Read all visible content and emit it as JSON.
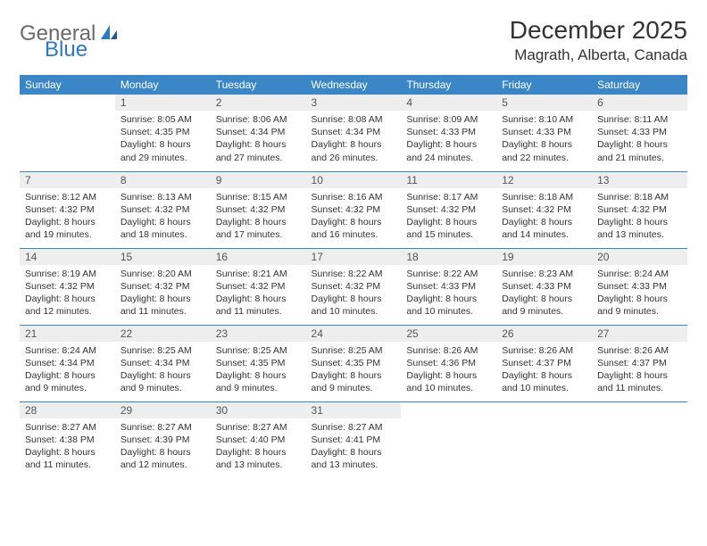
{
  "logo": {
    "part1": "General",
    "part2": "Blue"
  },
  "header": {
    "title": "December 2025",
    "location": "Magrath, Alberta, Canada"
  },
  "colors": {
    "header_bg": "#3b86c6",
    "header_fg": "#ffffff",
    "daynum_bg": "#eeeeee",
    "rule": "#3b86c6",
    "logo_gray": "#6a6a6a",
    "logo_blue": "#2f7abf"
  },
  "daynames": [
    "Sunday",
    "Monday",
    "Tuesday",
    "Wednesday",
    "Thursday",
    "Friday",
    "Saturday"
  ],
  "weeks": [
    [
      null,
      {
        "n": "1",
        "sr": "8:05 AM",
        "ss": "4:35 PM",
        "dl": "8 hours and 29 minutes."
      },
      {
        "n": "2",
        "sr": "8:06 AM",
        "ss": "4:34 PM",
        "dl": "8 hours and 27 minutes."
      },
      {
        "n": "3",
        "sr": "8:08 AM",
        "ss": "4:34 PM",
        "dl": "8 hours and 26 minutes."
      },
      {
        "n": "4",
        "sr": "8:09 AM",
        "ss": "4:33 PM",
        "dl": "8 hours and 24 minutes."
      },
      {
        "n": "5",
        "sr": "8:10 AM",
        "ss": "4:33 PM",
        "dl": "8 hours and 22 minutes."
      },
      {
        "n": "6",
        "sr": "8:11 AM",
        "ss": "4:33 PM",
        "dl": "8 hours and 21 minutes."
      }
    ],
    [
      {
        "n": "7",
        "sr": "8:12 AM",
        "ss": "4:32 PM",
        "dl": "8 hours and 19 minutes."
      },
      {
        "n": "8",
        "sr": "8:13 AM",
        "ss": "4:32 PM",
        "dl": "8 hours and 18 minutes."
      },
      {
        "n": "9",
        "sr": "8:15 AM",
        "ss": "4:32 PM",
        "dl": "8 hours and 17 minutes."
      },
      {
        "n": "10",
        "sr": "8:16 AM",
        "ss": "4:32 PM",
        "dl": "8 hours and 16 minutes."
      },
      {
        "n": "11",
        "sr": "8:17 AM",
        "ss": "4:32 PM",
        "dl": "8 hours and 15 minutes."
      },
      {
        "n": "12",
        "sr": "8:18 AM",
        "ss": "4:32 PM",
        "dl": "8 hours and 14 minutes."
      },
      {
        "n": "13",
        "sr": "8:18 AM",
        "ss": "4:32 PM",
        "dl": "8 hours and 13 minutes."
      }
    ],
    [
      {
        "n": "14",
        "sr": "8:19 AM",
        "ss": "4:32 PM",
        "dl": "8 hours and 12 minutes."
      },
      {
        "n": "15",
        "sr": "8:20 AM",
        "ss": "4:32 PM",
        "dl": "8 hours and 11 minutes."
      },
      {
        "n": "16",
        "sr": "8:21 AM",
        "ss": "4:32 PM",
        "dl": "8 hours and 11 minutes."
      },
      {
        "n": "17",
        "sr": "8:22 AM",
        "ss": "4:32 PM",
        "dl": "8 hours and 10 minutes."
      },
      {
        "n": "18",
        "sr": "8:22 AM",
        "ss": "4:33 PM",
        "dl": "8 hours and 10 minutes."
      },
      {
        "n": "19",
        "sr": "8:23 AM",
        "ss": "4:33 PM",
        "dl": "8 hours and 9 minutes."
      },
      {
        "n": "20",
        "sr": "8:24 AM",
        "ss": "4:33 PM",
        "dl": "8 hours and 9 minutes."
      }
    ],
    [
      {
        "n": "21",
        "sr": "8:24 AM",
        "ss": "4:34 PM",
        "dl": "8 hours and 9 minutes."
      },
      {
        "n": "22",
        "sr": "8:25 AM",
        "ss": "4:34 PM",
        "dl": "8 hours and 9 minutes."
      },
      {
        "n": "23",
        "sr": "8:25 AM",
        "ss": "4:35 PM",
        "dl": "8 hours and 9 minutes."
      },
      {
        "n": "24",
        "sr": "8:25 AM",
        "ss": "4:35 PM",
        "dl": "8 hours and 9 minutes."
      },
      {
        "n": "25",
        "sr": "8:26 AM",
        "ss": "4:36 PM",
        "dl": "8 hours and 10 minutes."
      },
      {
        "n": "26",
        "sr": "8:26 AM",
        "ss": "4:37 PM",
        "dl": "8 hours and 10 minutes."
      },
      {
        "n": "27",
        "sr": "8:26 AM",
        "ss": "4:37 PM",
        "dl": "8 hours and 11 minutes."
      }
    ],
    [
      {
        "n": "28",
        "sr": "8:27 AM",
        "ss": "4:38 PM",
        "dl": "8 hours and 11 minutes."
      },
      {
        "n": "29",
        "sr": "8:27 AM",
        "ss": "4:39 PM",
        "dl": "8 hours and 12 minutes."
      },
      {
        "n": "30",
        "sr": "8:27 AM",
        "ss": "4:40 PM",
        "dl": "8 hours and 13 minutes."
      },
      {
        "n": "31",
        "sr": "8:27 AM",
        "ss": "4:41 PM",
        "dl": "8 hours and 13 minutes."
      },
      null,
      null,
      null
    ]
  ],
  "labels": {
    "sunrise": "Sunrise: ",
    "sunset": "Sunset: ",
    "daylight": "Daylight: "
  }
}
